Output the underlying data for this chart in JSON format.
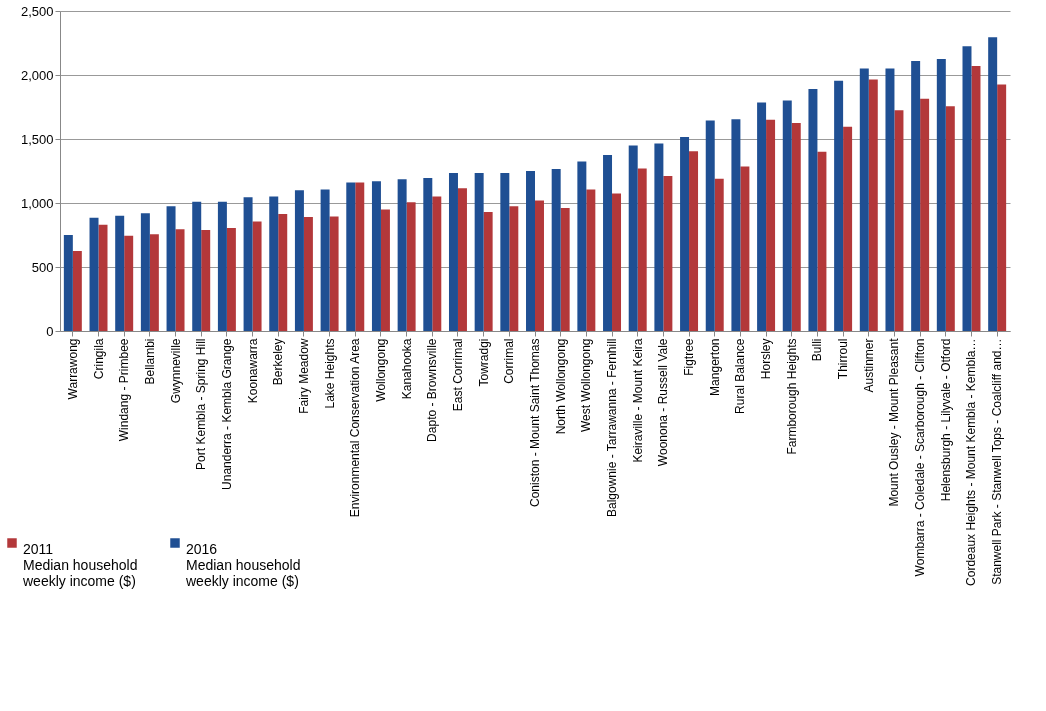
{
  "chart_data": {
    "type": "bar",
    "categories": [
      "Warrawong",
      "Cringila",
      "Windang - Primbee",
      "Bellambi",
      "Gwynneville",
      "Port Kembla - Spring Hill",
      "Unanderra - Kembla Grange",
      "Koonawarra",
      "Berkeley",
      "Fairy Meadow",
      "Lake Heights",
      "Environmental Conservation Area",
      "Wollongong",
      "Kanahooka",
      "Dapto - Brownsville",
      "East Corrimal",
      "Towradgi",
      "Corrimal",
      "Coniston - Mount Saint Thomas",
      "North Wollongong",
      "West Wollongong",
      "Balgownie - Tarrawanna - Fernhill",
      "Keiraville - Mount Keira",
      "Woonona - Russell Vale",
      "Figtree",
      "Mangerton",
      "Rural Balance",
      "Horsley",
      "Farmborough Heights",
      "Bulli",
      "Thirroul",
      "Austinmer",
      "Mount Ousley - Mount Pleasant",
      "Wombarra - Coledale - Scarborough - Clifton",
      "Helensburgh - Lilyvale - Otford",
      "Cordeaux Heights - Mount Kembla - Kembla…",
      "Stanwell Park - Stanwell Tops - Coalcliff and…"
    ],
    "series": [
      {
        "name": "2011 Median household weekly income ($)",
        "color": "#b3383a",
        "values": [
          625,
          830,
          745,
          755,
          795,
          790,
          805,
          855,
          915,
          890,
          895,
          1160,
          950,
          1005,
          1050,
          1115,
          930,
          975,
          1020,
          960,
          1105,
          1075,
          1270,
          1210,
          1405,
          1190,
          1285,
          1650,
          1625,
          1400,
          1595,
          1965,
          1725,
          1815,
          1755,
          2070,
          1925
        ]
      },
      {
        "name": "2016 Median household weekly income ($)",
        "color": "#1f4f93",
        "values": [
          750,
          885,
          900,
          920,
          975,
          1010,
          1010,
          1045,
          1050,
          1100,
          1105,
          1160,
          1170,
          1185,
          1195,
          1235,
          1235,
          1235,
          1250,
          1265,
          1325,
          1375,
          1450,
          1465,
          1515,
          1645,
          1655,
          1785,
          1800,
          1890,
          1955,
          2050,
          2050,
          2110,
          2125,
          2225,
          2295
        ]
      }
    ],
    "ylim": [
      0,
      2500
    ],
    "yticks": [
      0,
      500,
      {
        "value": 1000,
        "label": "1,000"
      },
      {
        "value": 1500,
        "label": "1,500"
      },
      {
        "value": 2000,
        "label": "2,000"
      },
      {
        "value": 2500,
        "label": "2,500"
      }
    ],
    "grid": "y",
    "legend": "bottom left"
  }
}
